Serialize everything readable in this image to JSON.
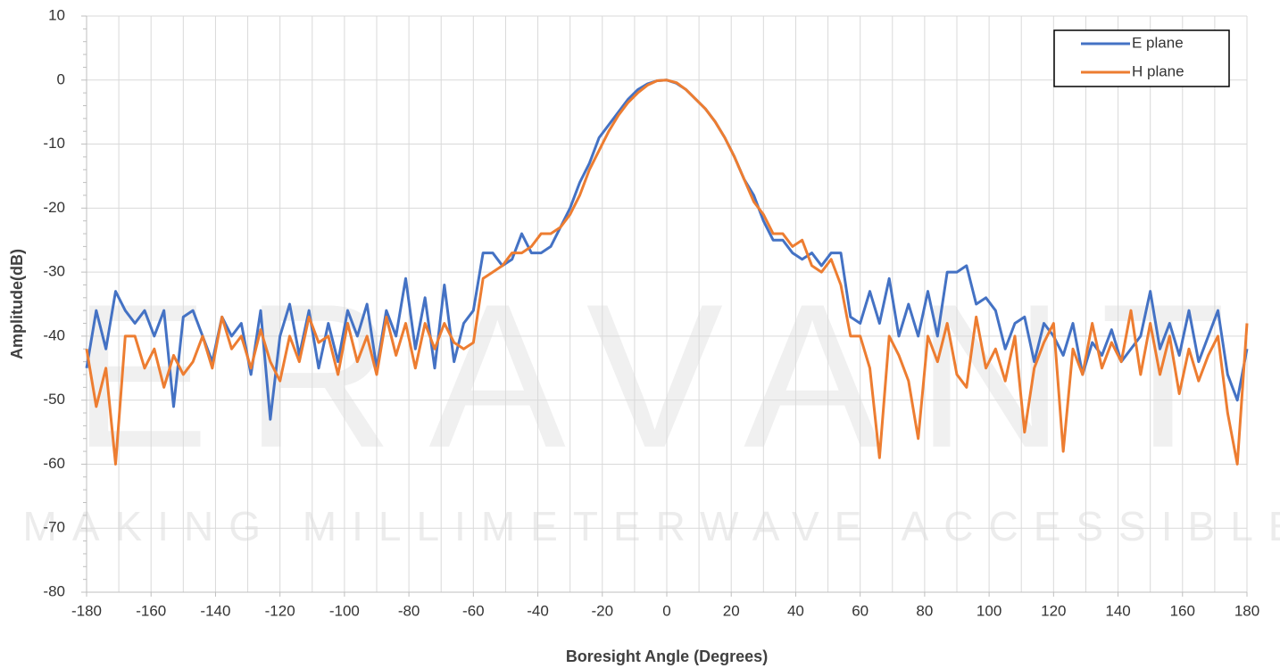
{
  "chart_data": {
    "type": "line",
    "x_label": "Boresight Angle (Degrees)",
    "y_label": "Amplitude(dB)",
    "watermark": "ERAVANT",
    "watermark_tagline": "MAKING MILLIMETERWAVE ACCESSIBLE",
    "xlim": [
      -180,
      180
    ],
    "ylim": [
      -80,
      10
    ],
    "xticks": [
      -180,
      -160,
      -140,
      -120,
      -100,
      -80,
      -60,
      -40,
      -20,
      0,
      20,
      40,
      60,
      80,
      100,
      120,
      140,
      160,
      180
    ],
    "yticks": [
      -80,
      -70,
      -60,
      -50,
      -40,
      -30,
      -20,
      -10,
      0,
      10
    ],
    "grid": true,
    "legend": "upper right",
    "x": [
      -180,
      -177,
      -174,
      -171,
      -168,
      -165,
      -162,
      -159,
      -156,
      -153,
      -150,
      -147,
      -144,
      -141,
      -138,
      -135,
      -132,
      -129,
      -126,
      -123,
      -120,
      -117,
      -114,
      -111,
      -108,
      -105,
      -102,
      -99,
      -96,
      -93,
      -90,
      -87,
      -84,
      -81,
      -78,
      -75,
      -72,
      -69,
      -66,
      -63,
      -60,
      -57,
      -54,
      -51,
      -48,
      -45,
      -42,
      -39,
      -36,
      -33,
      -30,
      -27,
      -24,
      -21,
      -18,
      -15,
      -12,
      -9,
      -6,
      -3,
      0,
      3,
      6,
      9,
      12,
      15,
      18,
      21,
      24,
      27,
      30,
      33,
      36,
      39,
      42,
      45,
      48,
      51,
      54,
      57,
      60,
      63,
      66,
      69,
      72,
      75,
      78,
      81,
      84,
      87,
      90,
      93,
      96,
      99,
      102,
      105,
      108,
      111,
      114,
      117,
      120,
      123,
      126,
      129,
      132,
      135,
      138,
      141,
      144,
      147,
      150,
      153,
      156,
      159,
      162,
      165,
      168,
      171,
      174,
      177,
      180
    ],
    "series": [
      {
        "name": "E plane",
        "color": "#4472c4",
        "values": [
          -45,
          -36,
          -42,
          -33,
          -36,
          -38,
          -36,
          -40,
          -36,
          -51,
          -37,
          -36,
          -40,
          -44,
          -37,
          -40,
          -38,
          -46,
          -36,
          -53,
          -40,
          -35,
          -43,
          -36,
          -45,
          -38,
          -44,
          -36,
          -40,
          -35,
          -45,
          -36,
          -40,
          -31,
          -42,
          -34,
          -45,
          -32,
          -44,
          -38,
          -36,
          -27,
          -27,
          -29,
          -28,
          -24,
          -27,
          -27,
          -26,
          -23,
          -20,
          -16,
          -13,
          -9,
          -7,
          -5,
          -3,
          -1.5,
          -0.6,
          -0.1,
          0,
          -0.5,
          -1.5,
          -3,
          -4.5,
          -6.5,
          -9,
          -12,
          -15.5,
          -18,
          -22,
          -25,
          -25,
          -27,
          -28,
          -27,
          -29,
          -27,
          -27,
          -37,
          -38,
          -33,
          -38,
          -31,
          -40,
          -35,
          -40,
          -33,
          -40,
          -30,
          -30,
          -29,
          -35,
          -34,
          -36,
          -42,
          -38,
          -37,
          -44,
          -38,
          -40,
          -43,
          -38,
          -46,
          -41,
          -43,
          -39,
          -44,
          -42,
          -40,
          -33,
          -42,
          -38,
          -43,
          -36,
          -44,
          -40,
          -36,
          -46,
          -50,
          -42
        ]
      },
      {
        "name": "H plane",
        "color": "#ed7d31",
        "values": [
          -42,
          -51,
          -45,
          -60,
          -40,
          -40,
          -45,
          -42,
          -48,
          -43,
          -46,
          -44,
          -40,
          -45,
          -37,
          -42,
          -40,
          -45,
          -39,
          -44,
          -47,
          -40,
          -44,
          -37,
          -41,
          -40,
          -46,
          -38,
          -44,
          -40,
          -46,
          -37,
          -43,
          -38,
          -45,
          -38,
          -42,
          -38,
          -41,
          -42,
          -41,
          -31,
          -30,
          -29,
          -27,
          -27,
          -26,
          -24,
          -24,
          -23,
          -21,
          -18,
          -14,
          -11,
          -8,
          -5.5,
          -3.5,
          -2,
          -0.8,
          -0.1,
          0,
          -0.4,
          -1.5,
          -3,
          -4.5,
          -6.5,
          -9,
          -12,
          -15.5,
          -19,
          -21,
          -24,
          -24,
          -26,
          -25,
          -29,
          -30,
          -28,
          -32,
          -40,
          -40,
          -45,
          -59,
          -40,
          -43,
          -47,
          -56,
          -40,
          -44,
          -38,
          -46,
          -48,
          -37,
          -45,
          -42,
          -47,
          -40,
          -55,
          -45,
          -41,
          -38,
          -58,
          -42,
          -46,
          -38,
          -45,
          -41,
          -44,
          -36,
          -46,
          -38,
          -46,
          -40,
          -49,
          -42,
          -47,
          -43,
          -40,
          -52,
          -60,
          -38
        ]
      }
    ]
  }
}
